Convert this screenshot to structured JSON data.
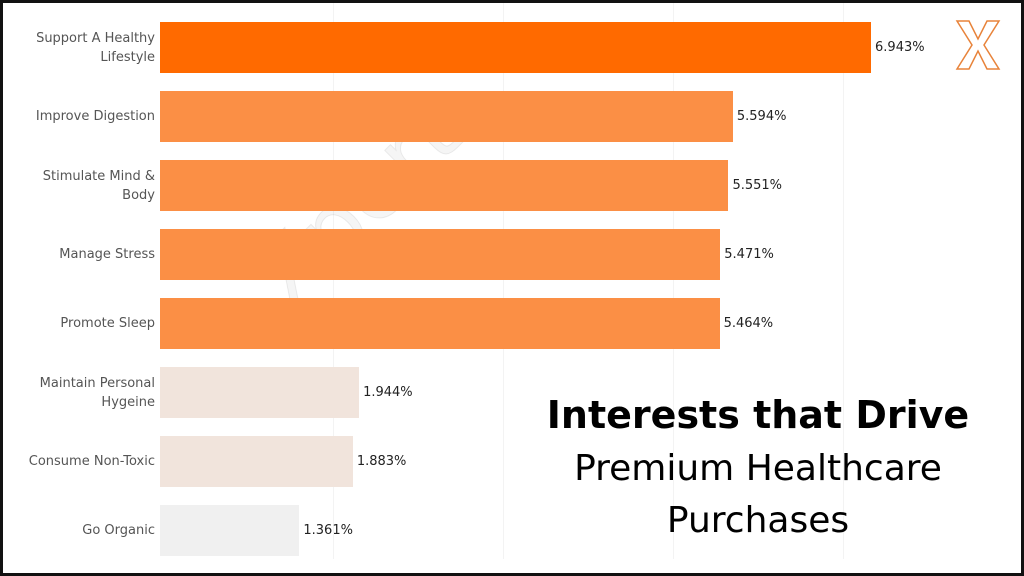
{
  "chart_data": {
    "type": "bar",
    "orientation": "horizontal",
    "title": "Interests that Drive",
    "subtitle": "Premium Healthcare Purchases",
    "watermark": "Xpert",
    "categories": [
      "Support A Healthy Lifestyle",
      "Improve Digestion",
      "Stimulate Mind & Body",
      "Manage Stress",
      "Promote Sleep",
      "Maintain Personal Hygeine",
      "Consume Non-Toxic",
      "Go Organic"
    ],
    "values": [
      6.943,
      5.594,
      5.551,
      5.471,
      5.464,
      1.944,
      1.883,
      1.361
    ],
    "value_labels": [
      "6.943%",
      "5.594%",
      "5.551%",
      "5.471%",
      "5.464%",
      "1.944%",
      "1.883%",
      "1.361%"
    ],
    "colors": [
      "#ff6a00",
      "#fb8f45",
      "#fb8f45",
      "#fb8f45",
      "#fb8f45",
      "#f1e4dc",
      "#f1e4dc",
      "#f0f0f0"
    ],
    "xlim": [
      0,
      8.3
    ]
  }
}
